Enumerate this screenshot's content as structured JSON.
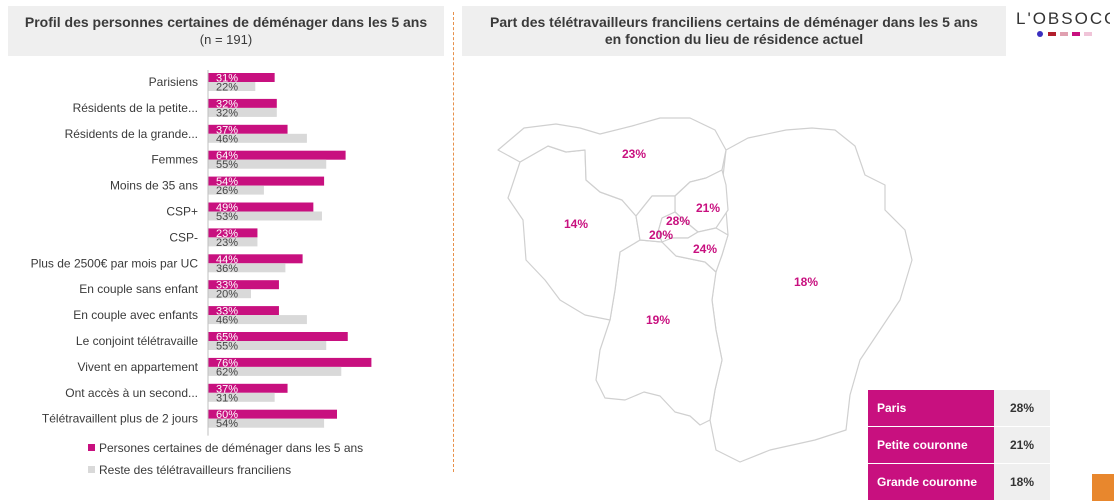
{
  "left_panel": {
    "title": "Profil des personnes certaines de déménager dans les 5 ans",
    "subtitle": "(n = 191)"
  },
  "right_panel": {
    "title_line1": "Part des télétravailleurs franciliens certains de déménager dans les 5 ans",
    "title_line2": "en fonction du lieu de résidence actuel"
  },
  "logo": {
    "text_top": "L'OBSOCO"
  },
  "colors": {
    "magenta": "#c8107f",
    "grey": "#d9d9d9",
    "orange": "#e8872d",
    "title_bg": "#efefef"
  },
  "chart_data": [
    {
      "type": "bar",
      "orientation": "horizontal",
      "categories": [
        "Parisiens",
        "Résidents de la petite...",
        "Résidents de la grande...",
        "Femmes",
        "Moins de 35 ans",
        "CSP+",
        "CSP-",
        "Plus de 2500€ par mois par UC",
        "En couple sans enfant",
        "En couple avec enfants",
        "Le conjoint télétravaille",
        "Vivent en appartement",
        "Ont accès à un second...",
        "Télétravaillent plus de 2 jours"
      ],
      "series": [
        {
          "name": "Persones certaines de déménager dans les 5 ans",
          "values": [
            31,
            32,
            37,
            64,
            54,
            49,
            23,
            44,
            33,
            33,
            65,
            76,
            37,
            60
          ],
          "labels": [
            "31%",
            "32%",
            "37%",
            "64%",
            "54%",
            "49%",
            "23%",
            "44%",
            "33%",
            "33%",
            "65%",
            "76%",
            "37%",
            "60%"
          ]
        },
        {
          "name": "Reste des télétravailleurs franciliens",
          "values": [
            22,
            32,
            46,
            55,
            26,
            53,
            23,
            36,
            20,
            46,
            55,
            62,
            31,
            54
          ],
          "labels": [
            "22%",
            "32%",
            "46%",
            "55%",
            "26%",
            "53%",
            "23%",
            "36%",
            "20%",
            "46%",
            "55%",
            "62%",
            "31%",
            "54%"
          ]
        }
      ]
    },
    {
      "type": "map",
      "regions": [
        {
          "name": "Val-d'Oise",
          "label": "23%"
        },
        {
          "name": "Yvelines",
          "label": "14%"
        },
        {
          "name": "Paris",
          "label": "28%"
        },
        {
          "name": "Seine-Saint-Denis",
          "label": "21%"
        },
        {
          "name": "Hauts-de-Seine",
          "label": "20%"
        },
        {
          "name": "Val-de-Marne",
          "label": "24%"
        },
        {
          "name": "Essonne",
          "label": "19%"
        },
        {
          "name": "Seine-et-Marne",
          "label": "18%"
        }
      ],
      "table": [
        {
          "label": "Paris",
          "value": "28%"
        },
        {
          "label": "Petite couronne",
          "value": "21%"
        },
        {
          "label": "Grande couronne",
          "value": "18%"
        }
      ]
    }
  ]
}
